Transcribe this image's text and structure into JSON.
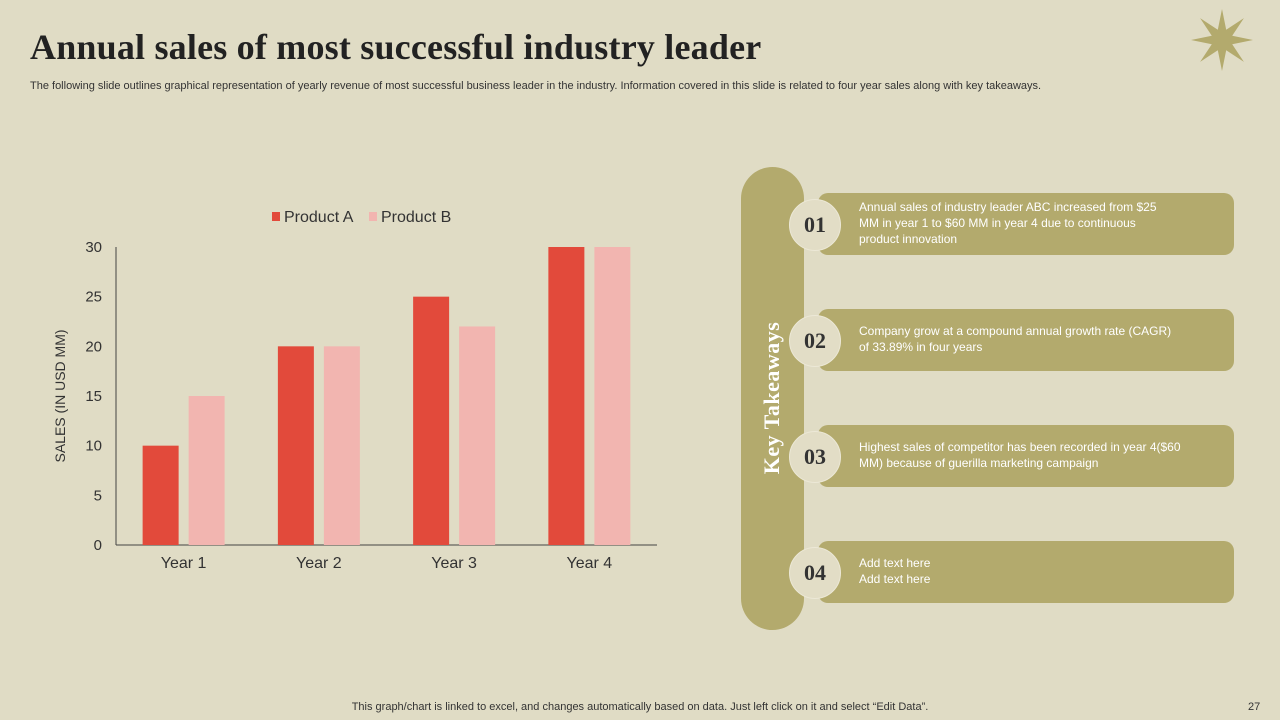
{
  "slide": {
    "title": "Annual sales of most successful industry leader",
    "subtitle": "The following slide outlines graphical representation of yearly revenue of most successful business leader in the industry. Information covered in this slide is related to four year sales along with key takeaways.",
    "footer_note": "This graph/chart is linked to excel,  and changes automatically based on data. Just left click on it and select “Edit Data”.",
    "page_number": "27",
    "star_icon": "eight-point-star-icon"
  },
  "chart_data": {
    "type": "bar",
    "categories": [
      "Year 1",
      "Year 2",
      "Year 3",
      "Year 4"
    ],
    "series": [
      {
        "name": "Product A",
        "values": [
          10,
          20,
          25,
          30
        ],
        "color": "#e24a3b"
      },
      {
        "name": "Product B",
        "values": [
          15,
          20,
          22,
          30
        ],
        "color": "#f2b5b0"
      }
    ],
    "ylabel": "SALES (IN USD MM)",
    "xlabel": "",
    "ylim": [
      0,
      30
    ],
    "yticks": [
      "0",
      "5",
      "10",
      "15",
      "20",
      "25",
      "30"
    ],
    "grid": false,
    "legend": "top"
  },
  "takeaways": {
    "heading": "Key Takeaways",
    "items": [
      {
        "number": "01",
        "line1": "Annual sales of industry leader ABC increased from $25",
        "line2": "MM in year 1 to $60 MM in year 4 due to continuous",
        "line3": "product innovation"
      },
      {
        "number": "02",
        "line1": "Company grow at a compound annual growth rate (CAGR)",
        "line2": "of 33.89% in four years",
        "line3": ""
      },
      {
        "number": "03",
        "line1": "Highest sales of competitor has been recorded in year 4($60",
        "line2": "MM) because of guerilla marketing campaign",
        "line3": ""
      },
      {
        "number": "04",
        "line1": "Add text here",
        "line2": "Add text here",
        "line3": ""
      }
    ]
  },
  "colors": {
    "background": "#e0dcc5",
    "accent": "#b3aa6d",
    "badge_fill": "#e2ddc6"
  }
}
